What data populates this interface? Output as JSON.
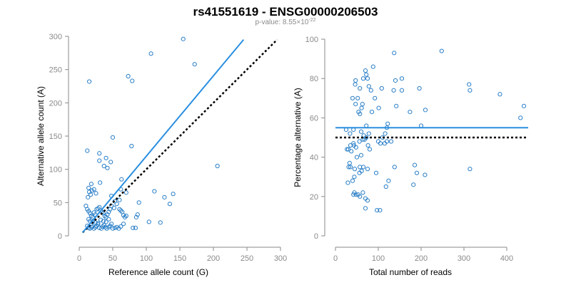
{
  "header": {
    "title": "rs41551619 - ENSG00000206503",
    "pvalue_prefix": "p-value: 8.55×10",
    "pvalue_exponent": "-22"
  },
  "chart_data": [
    {
      "type": "scatter",
      "id": "left",
      "xlabel": "Reference allele count (G)",
      "ylabel": "Alternative allele count (A)",
      "xlim": [
        0,
        300
      ],
      "ylim": [
        0,
        300
      ],
      "xticks": [
        0,
        50,
        100,
        150,
        200,
        250,
        300
      ],
      "yticks": [
        0,
        50,
        100,
        150,
        200,
        250,
        300
      ],
      "fit_line": {
        "x": [
          5,
          245
        ],
        "y": [
          5,
          295
        ]
      },
      "reference_line": {
        "x": [
          5,
          295
        ],
        "y": [
          5,
          295
        ]
      },
      "points": [
        [
          155,
          296
        ],
        [
          107,
          274
        ],
        [
          172,
          258
        ],
        [
          15,
          232
        ],
        [
          73,
          240
        ],
        [
          79,
          233
        ],
        [
          12,
          128
        ],
        [
          50,
          148
        ],
        [
          30,
          124
        ],
        [
          40,
          117
        ],
        [
          37,
          105
        ],
        [
          42,
          102
        ],
        [
          47,
          111
        ],
        [
          30,
          113
        ],
        [
          78,
          135
        ],
        [
          18,
          78
        ],
        [
          206,
          105
        ],
        [
          31,
          80
        ],
        [
          63,
          85
        ],
        [
          112,
          67
        ],
        [
          127,
          58
        ],
        [
          140,
          63
        ],
        [
          135,
          48
        ],
        [
          48,
          60
        ],
        [
          53,
          52
        ],
        [
          60,
          54
        ],
        [
          62,
          70
        ],
        [
          70,
          65
        ],
        [
          89,
          50
        ],
        [
          13,
          58
        ],
        [
          15,
          66
        ],
        [
          17,
          62
        ],
        [
          19,
          68
        ],
        [
          22,
          70
        ],
        [
          25,
          64
        ],
        [
          14,
          72
        ],
        [
          10,
          45
        ],
        [
          12,
          40
        ],
        [
          14,
          37
        ],
        [
          16,
          34
        ],
        [
          18,
          30
        ],
        [
          20,
          28
        ],
        [
          22,
          35
        ],
        [
          24,
          32
        ],
        [
          26,
          40
        ],
        [
          28,
          41
        ],
        [
          30,
          43
        ],
        [
          32,
          38
        ],
        [
          34,
          36
        ],
        [
          36,
          34
        ],
        [
          38,
          30
        ],
        [
          40,
          28
        ],
        [
          42,
          32
        ],
        [
          44,
          36
        ],
        [
          46,
          40
        ],
        [
          48,
          45
        ],
        [
          52,
          42
        ],
        [
          56,
          48
        ],
        [
          60,
          40
        ],
        [
          62,
          38
        ],
        [
          64,
          36
        ],
        [
          66,
          31
        ],
        [
          68,
          28
        ],
        [
          70,
          30
        ],
        [
          85,
          28
        ],
        [
          87,
          32
        ],
        [
          104,
          21
        ],
        [
          121,
          20
        ],
        [
          12,
          15
        ],
        [
          14,
          12
        ],
        [
          16,
          11
        ],
        [
          18,
          13
        ],
        [
          20,
          14
        ],
        [
          22,
          11
        ],
        [
          24,
          13
        ],
        [
          26,
          15
        ],
        [
          28,
          17
        ],
        [
          30,
          12
        ],
        [
          33,
          11
        ],
        [
          35,
          14
        ],
        [
          37,
          16
        ],
        [
          39,
          13
        ],
        [
          41,
          11
        ],
        [
          44,
          13
        ],
        [
          46,
          15
        ],
        [
          48,
          18
        ],
        [
          50,
          11
        ],
        [
          53,
          12
        ],
        [
          56,
          13
        ],
        [
          59,
          11
        ],
        [
          62,
          14
        ],
        [
          66,
          18
        ],
        [
          80,
          12
        ],
        [
          84,
          12
        ],
        [
          14,
          25
        ],
        [
          16,
          22
        ],
        [
          20,
          21
        ],
        [
          24,
          20
        ],
        [
          28,
          19
        ],
        [
          32,
          24
        ],
        [
          36,
          22
        ],
        [
          40,
          21
        ],
        [
          44,
          25
        ]
      ]
    },
    {
      "type": "scatter",
      "id": "right",
      "xlabel": "Total number of reads",
      "ylabel": "Percentage alternative (A)",
      "xlim": [
        0,
        450
      ],
      "ylim": [
        0,
        100
      ],
      "xticks": [
        0,
        100,
        200,
        300,
        400
      ],
      "yticks": [
        0,
        20,
        40,
        60,
        80,
        100
      ],
      "fit_line": {
        "x": [
          0,
          450
        ],
        "y": [
          55,
          55
        ]
      },
      "reference_line": {
        "x": [
          0,
          450
        ],
        "y": [
          50,
          50
        ]
      },
      "points": [
        [
          248,
          94
        ],
        [
          137,
          93
        ],
        [
          88,
          86
        ],
        [
          70,
          84
        ],
        [
          72,
          82
        ],
        [
          65,
          80
        ],
        [
          75,
          80
        ],
        [
          47,
          79
        ],
        [
          46,
          77
        ],
        [
          140,
          79
        ],
        [
          155,
          80
        ],
        [
          57,
          75
        ],
        [
          78,
          76
        ],
        [
          83,
          74
        ],
        [
          108,
          75
        ],
        [
          136,
          74
        ],
        [
          155,
          74
        ],
        [
          196,
          75
        ],
        [
          312,
          77
        ],
        [
          314,
          74
        ],
        [
          384,
          72
        ],
        [
          40,
          70
        ],
        [
          52,
          70
        ],
        [
          92,
          70
        ],
        [
          47,
          67
        ],
        [
          54,
          63
        ],
        [
          61,
          65
        ],
        [
          63,
          67
        ],
        [
          101,
          65
        ],
        [
          57,
          62
        ],
        [
          85,
          63
        ],
        [
          174,
          63
        ],
        [
          142,
          66
        ],
        [
          210,
          64
        ],
        [
          440,
          66
        ],
        [
          432,
          60
        ],
        [
          122,
          57
        ],
        [
          200,
          56
        ],
        [
          72,
          56
        ],
        [
          25,
          54
        ],
        [
          34,
          52
        ],
        [
          42,
          54
        ],
        [
          60,
          53
        ],
        [
          66,
          51
        ],
        [
          72,
          50
        ],
        [
          78,
          52
        ],
        [
          100,
          48
        ],
        [
          110,
          50
        ],
        [
          116,
          52
        ],
        [
          120,
          55
        ],
        [
          35,
          46
        ],
        [
          43,
          46
        ],
        [
          27,
          44
        ],
        [
          30,
          44
        ],
        [
          37,
          43
        ],
        [
          42,
          47
        ],
        [
          48,
          45
        ],
        [
          56,
          48
        ],
        [
          64,
          49
        ],
        [
          68,
          49
        ],
        [
          76,
          46
        ],
        [
          80,
          44
        ],
        [
          105,
          47
        ],
        [
          115,
          47
        ],
        [
          120,
          48
        ],
        [
          130,
          48
        ],
        [
          50,
          40
        ],
        [
          60,
          41
        ],
        [
          65,
          35
        ],
        [
          57,
          35
        ],
        [
          45,
          34
        ],
        [
          33,
          37
        ],
        [
          31,
          35
        ],
        [
          35,
          35
        ],
        [
          138,
          35
        ],
        [
          185,
          36
        ],
        [
          190,
          32
        ],
        [
          209,
          31
        ],
        [
          314,
          34
        ],
        [
          29,
          27
        ],
        [
          40,
          28
        ],
        [
          44,
          30
        ],
        [
          56,
          32
        ],
        [
          61,
          33
        ],
        [
          75,
          34
        ],
        [
          95,
          32
        ],
        [
          44,
          22
        ],
        [
          48,
          21
        ],
        [
          53,
          21
        ],
        [
          57,
          20
        ],
        [
          64,
          22
        ],
        [
          70,
          19
        ],
        [
          75,
          18
        ],
        [
          42,
          21
        ],
        [
          118,
          25
        ],
        [
          124,
          28
        ],
        [
          182,
          26
        ],
        [
          97,
          13
        ],
        [
          104,
          13
        ],
        [
          70,
          14
        ]
      ]
    }
  ]
}
